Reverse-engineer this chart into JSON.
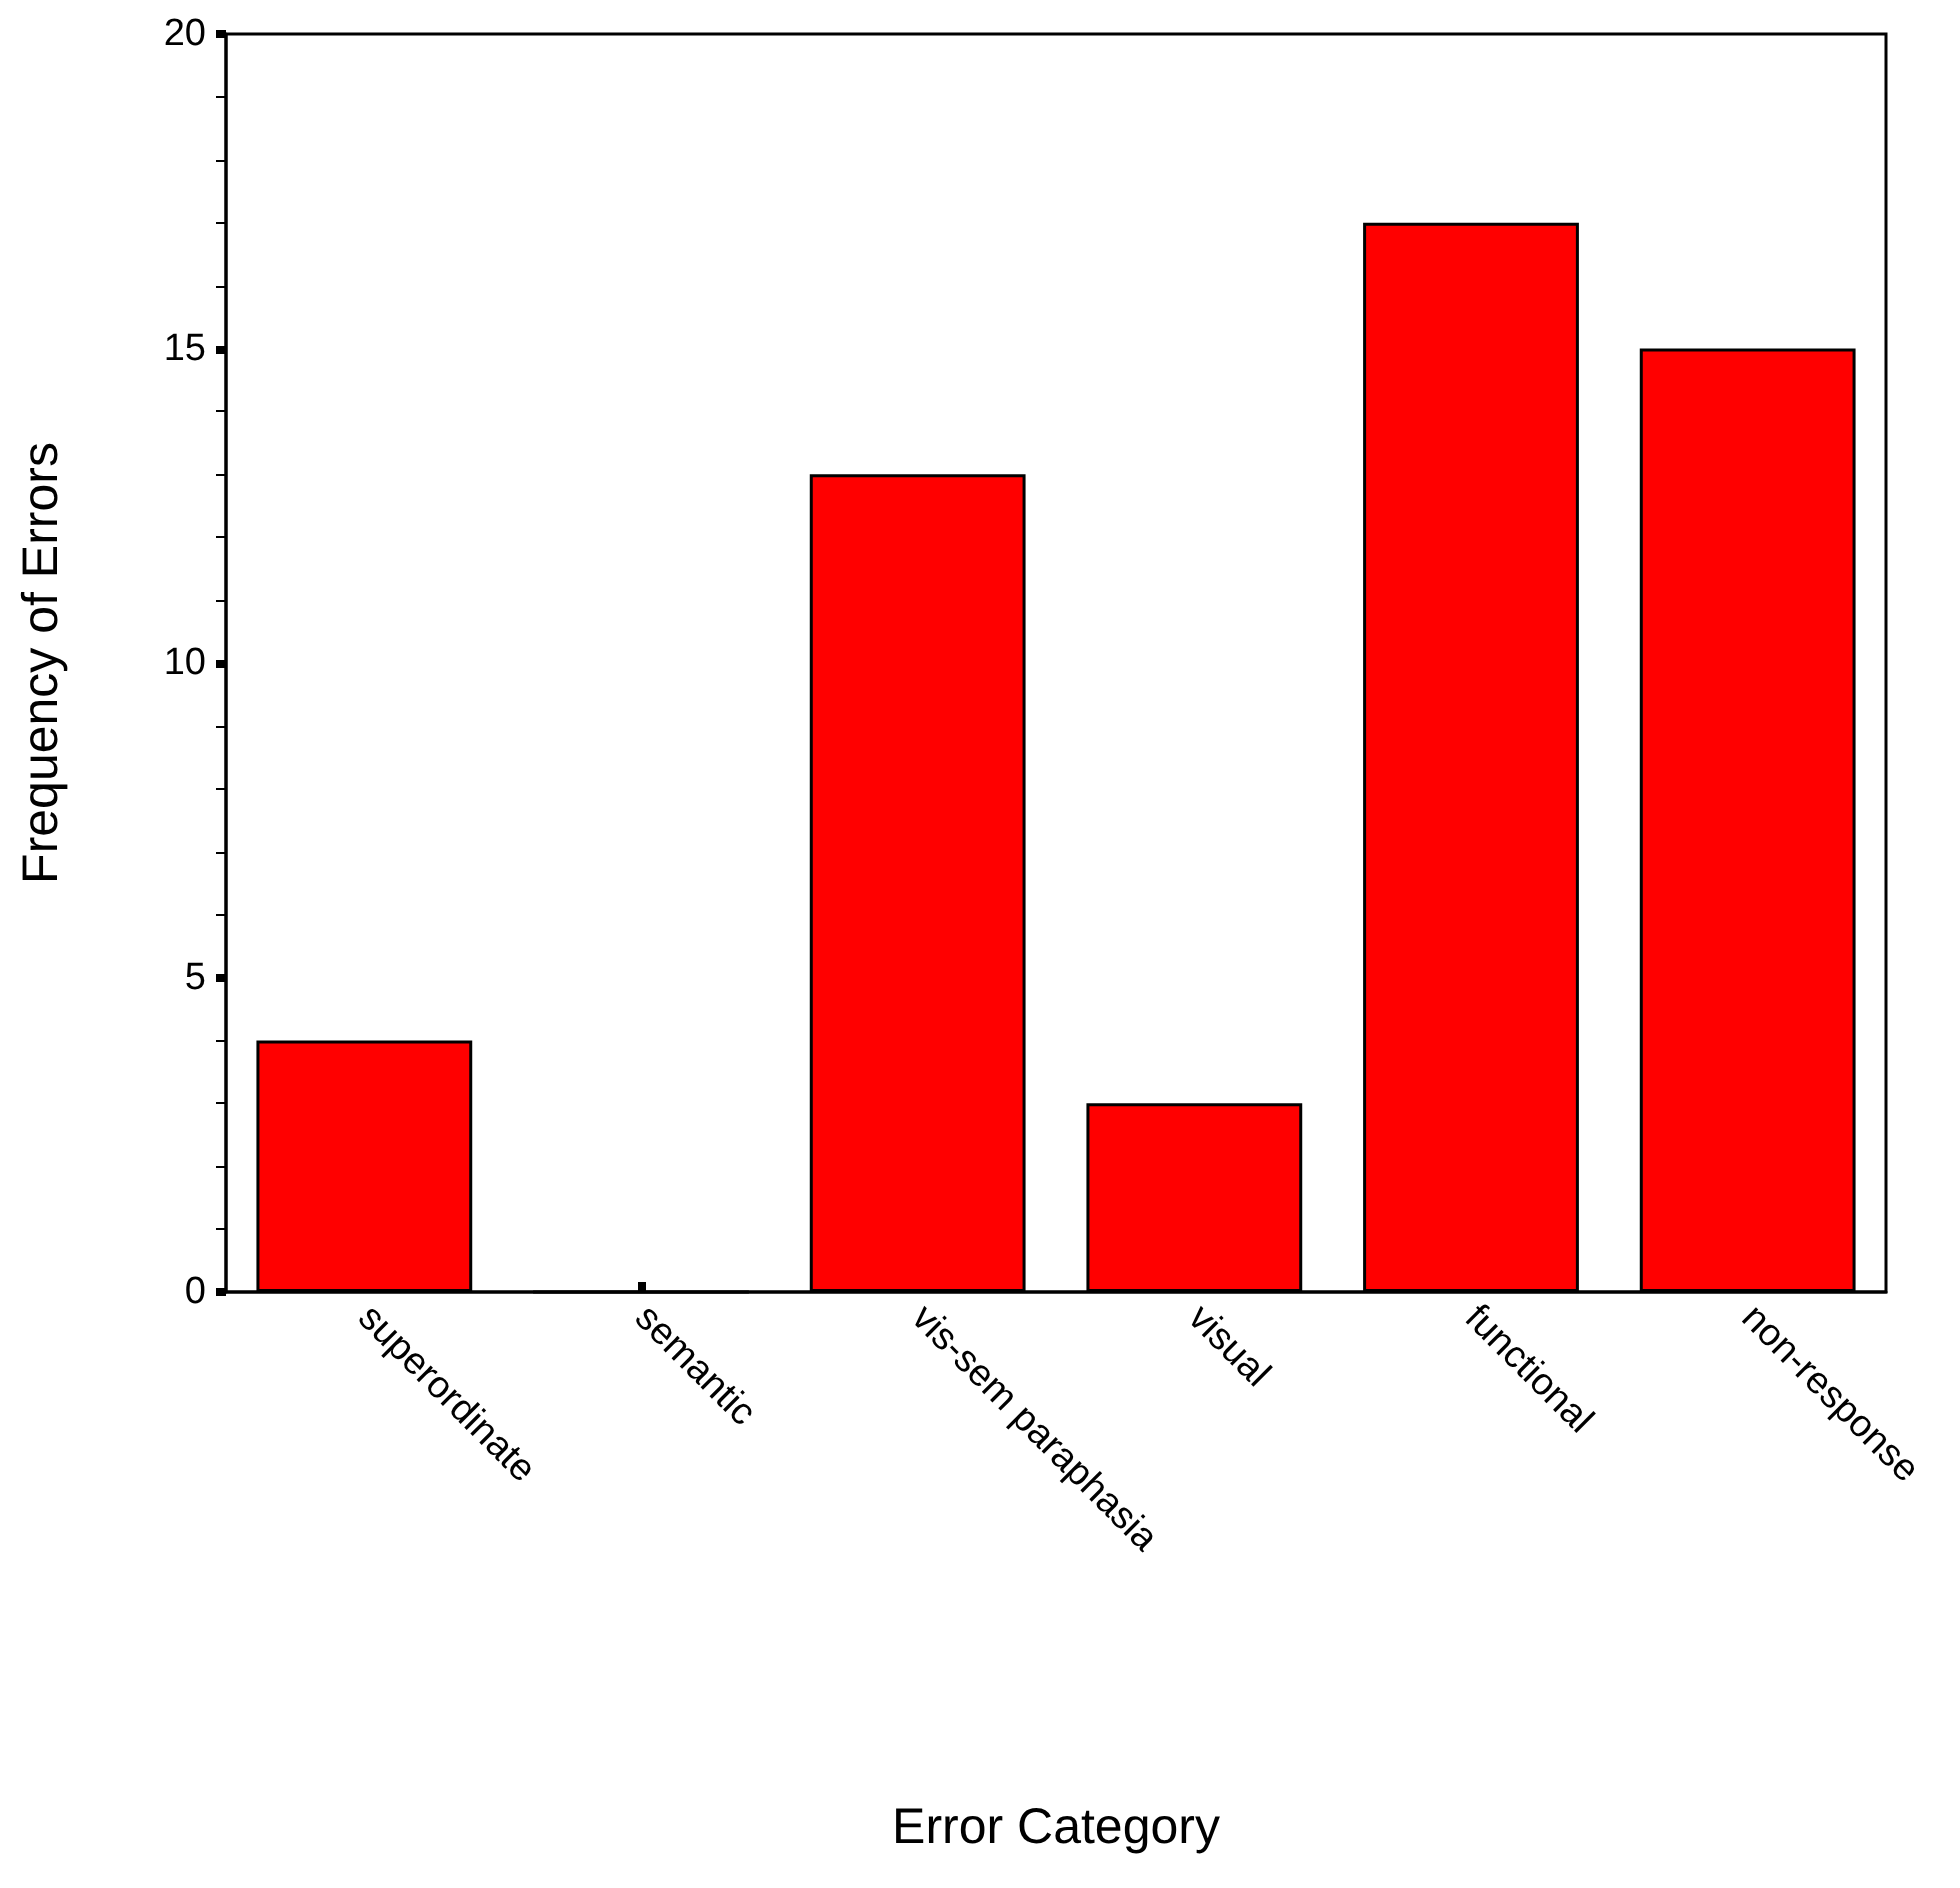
{
  "chart_data": {
    "type": "bar",
    "xlabel": "Error Category",
    "ylabel": "Frequency of Errors",
    "categories": [
      "superordinate",
      "semantic",
      "vis-sem paraphasia",
      "visual",
      "functional",
      "non-response"
    ],
    "values": [
      4,
      0,
      13,
      3,
      17,
      15
    ],
    "color": "#ff0000",
    "ylim": [
      0,
      20
    ],
    "yticks": [
      0,
      5,
      10,
      15,
      20
    ],
    "grid": false
  }
}
